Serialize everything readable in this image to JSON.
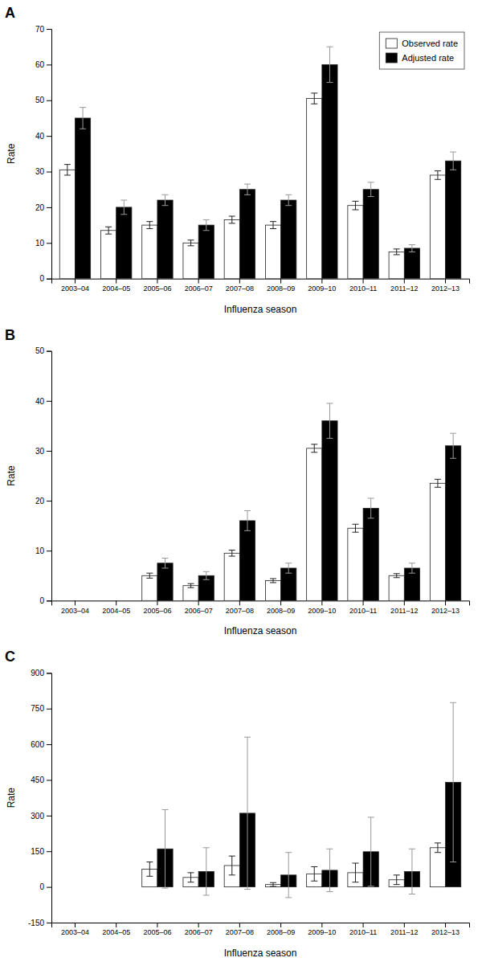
{
  "chart_data": [
    {
      "type": "bar",
      "title": "A",
      "x_label": "Influenza season",
      "y_label": "Rate",
      "categories": [
        "2003–04",
        "2004–05",
        "2005–06",
        "2006–07",
        "2007–08",
        "2008–09",
        "2009–10",
        "2010–11",
        "2011–12",
        "2012–13"
      ],
      "series": [
        {
          "name": "Observed rate",
          "color": "white",
          "values": [
            30.5,
            13.5,
            15.0,
            10.0,
            16.5,
            15.0,
            50.5,
            20.5,
            7.5,
            29.0
          ],
          "errors": [
            1.5,
            1.0,
            1.0,
            0.8,
            1.0,
            1.0,
            1.5,
            1.2,
            0.8,
            1.2
          ]
        },
        {
          "name": "Adjusted rate",
          "color": "black",
          "values": [
            45.0,
            20.0,
            22.0,
            15.0,
            25.0,
            22.0,
            60.0,
            25.0,
            8.5,
            33.0
          ],
          "errors": [
            3.0,
            2.0,
            1.5,
            1.5,
            1.5,
            1.5,
            5.0,
            2.0,
            1.0,
            2.5
          ]
        }
      ],
      "ylim": [
        0,
        70
      ],
      "yticks": [
        0,
        10,
        20,
        30,
        40,
        50,
        60,
        70
      ],
      "grid": false,
      "legend": "upper right"
    },
    {
      "type": "bar",
      "title": "B",
      "x_label": "Influenza season",
      "y_label": "Rate",
      "categories": [
        "2003–04",
        "2004–05",
        "2005–06",
        "2006–07",
        "2007–08",
        "2008–09",
        "2009–10",
        "2010–11",
        "2011–12",
        "2012–13"
      ],
      "series": [
        {
          "color": "white",
          "values": [
            0.0,
            0.0,
            5.0,
            3.0,
            9.5,
            4.0,
            30.5,
            14.5,
            5.0,
            23.5
          ],
          "errors": [
            0.0,
            0.0,
            0.5,
            0.4,
            0.6,
            0.4,
            0.8,
            0.8,
            0.4,
            0.8
          ]
        },
        {
          "color": "black",
          "values": [
            0.0,
            0.0,
            7.5,
            5.0,
            16.0,
            6.5,
            36.0,
            18.5,
            6.5,
            31.0
          ],
          "errors": [
            0.0,
            0.0,
            1.0,
            0.8,
            2.0,
            1.0,
            3.5,
            2.0,
            1.0,
            2.5
          ]
        }
      ],
      "ylim": [
        0,
        50
      ],
      "yticks": [
        0,
        10,
        20,
        30,
        40,
        50
      ],
      "grid": false
    },
    {
      "type": "bar",
      "title": "C",
      "x_label": "Influenza season",
      "y_label": "Rate",
      "categories": [
        "2003–04",
        "2004–05",
        "2005–06",
        "2006–07",
        "2007–08",
        "2008–09",
        "2009–10",
        "2010–11",
        "2011–12",
        "2012–13"
      ],
      "series": [
        {
          "color": "white",
          "values": [
            0.0,
            0.0,
            75.0,
            40.0,
            90.0,
            10.0,
            55.0,
            60.0,
            30.0,
            165.0
          ],
          "errors": [
            0.0,
            0.0,
            30.0,
            20.0,
            40.0,
            8.0,
            30.0,
            40.0,
            20.0,
            20.0
          ]
        },
        {
          "color": "black",
          "values": [
            0.0,
            0.0,
            160.0,
            65.0,
            310.0,
            50.0,
            70.0,
            148.0,
            65.0,
            440.0
          ],
          "errors": [
            0.0,
            0.0,
            165.0,
            100.0,
            320.0,
            95.0,
            90.0,
            145.0,
            95.0,
            335.0
          ]
        }
      ],
      "ylim": [
        -150,
        900
      ],
      "yticks": [
        -150,
        0,
        150,
        300,
        450,
        600,
        750,
        900
      ],
      "grid": false
    }
  ]
}
